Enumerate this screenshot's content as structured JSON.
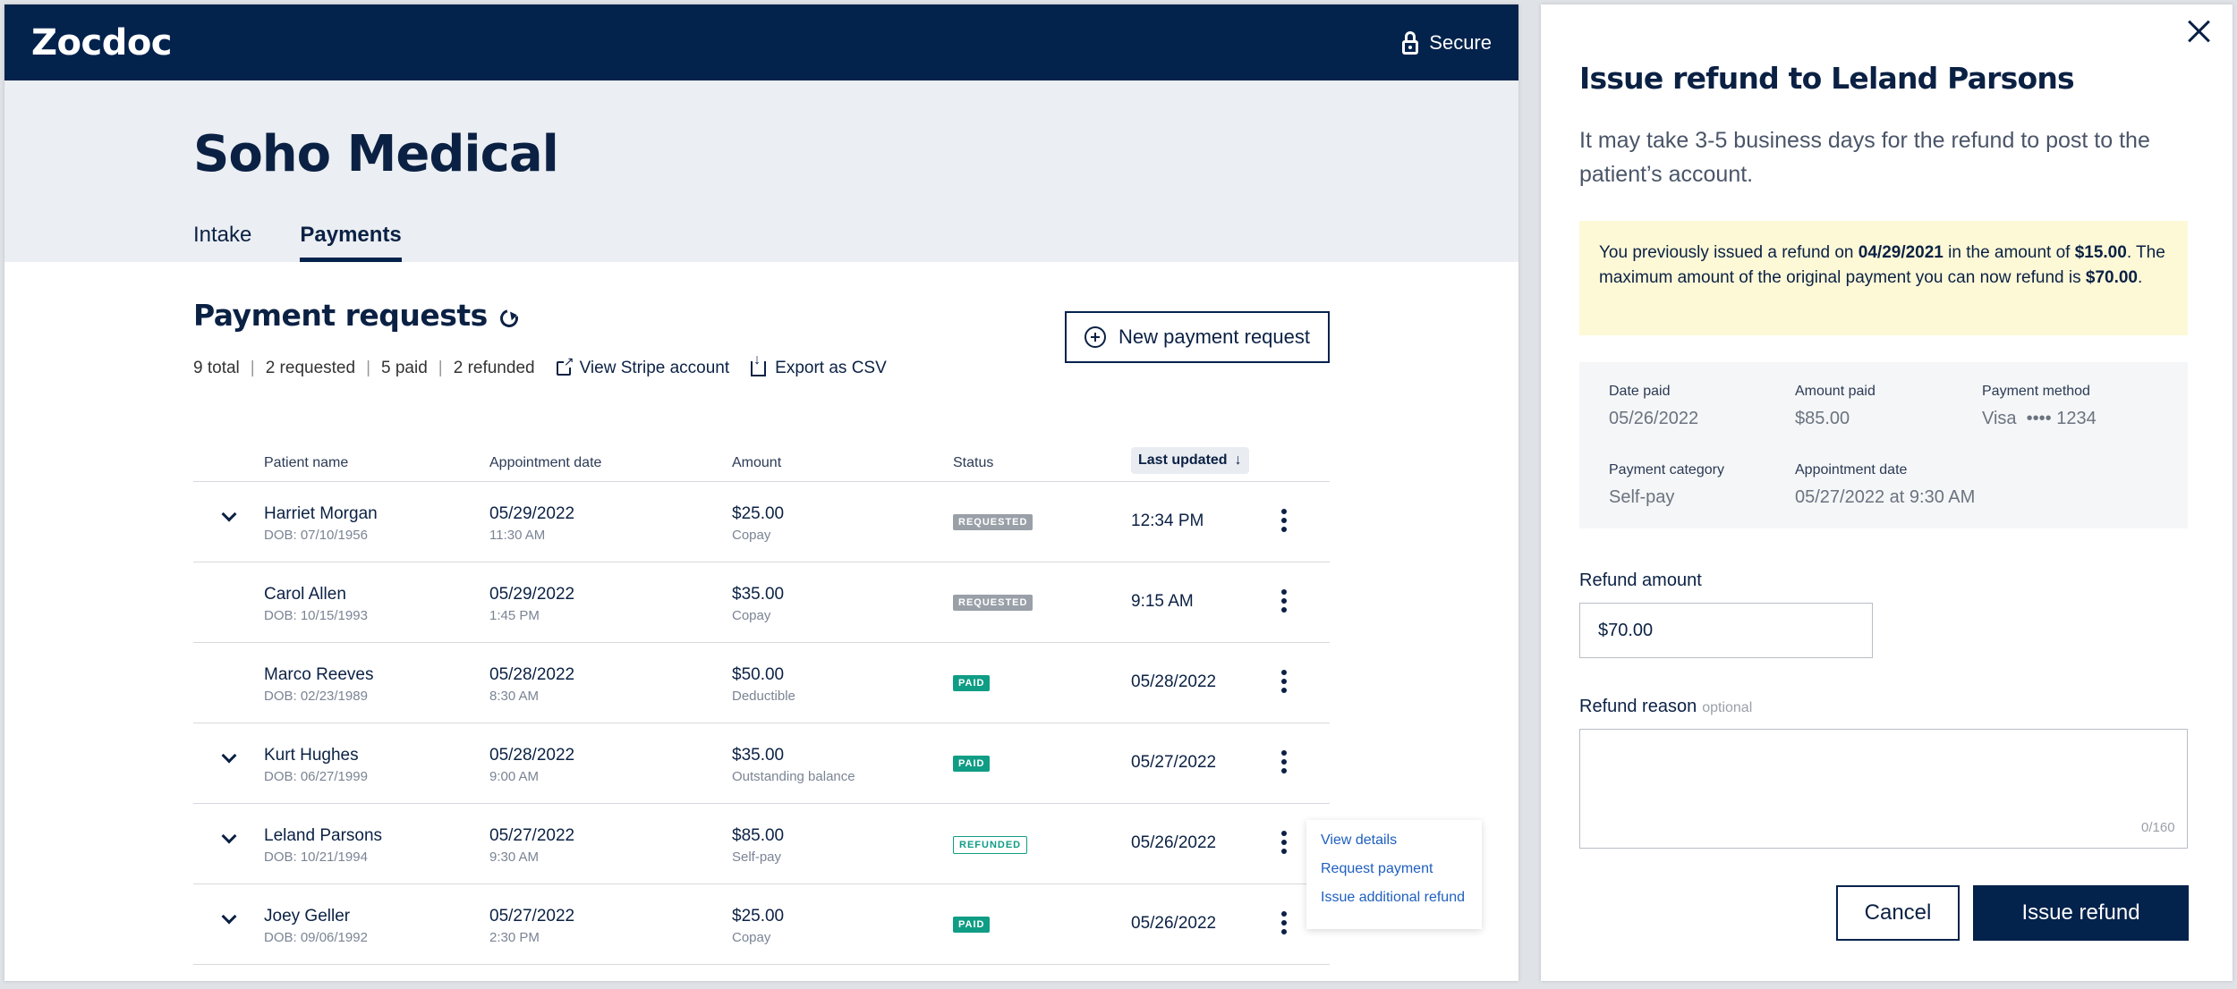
{
  "app": {
    "logo": "Zocdoc",
    "secure_label": "Secure",
    "org_title": "Soho Medical",
    "tabs": [
      {
        "label": "Intake"
      },
      {
        "label": "Payments"
      }
    ]
  },
  "payments": {
    "title": "Payment requests",
    "summary": {
      "total": "9 total",
      "requested": "2 requested",
      "paid": "5 paid",
      "refunded": "2 refunded",
      "view_stripe": "View Stripe account",
      "export_csv": "Export as CSV"
    },
    "new_request_label": "New payment request",
    "columns": {
      "patient": "Patient name",
      "appointment": "Appointment date",
      "amount": "Amount",
      "status": "Status",
      "updated": "Last updated"
    },
    "rows": [
      {
        "name": "Harriet Morgan",
        "dob": "DOB: 07/10/1956",
        "appt_date": "05/29/2022",
        "appt_time": "11:30 AM",
        "amount": "$25.00",
        "category": "Copay",
        "status": "REQUESTED",
        "updated": "12:34 PM"
      },
      {
        "name": "Carol Allen",
        "dob": "DOB: 10/15/1993",
        "appt_date": "05/29/2022",
        "appt_time": "1:45 PM",
        "amount": "$35.00",
        "category": "Copay",
        "status": "REQUESTED",
        "updated": "9:15 AM"
      },
      {
        "name": "Marco Reeves",
        "dob": "DOB: 02/23/1989",
        "appt_date": "05/28/2022",
        "appt_time": "8:30 AM",
        "amount": "$50.00",
        "category": "Deductible",
        "status": "PAID",
        "updated": "05/28/2022"
      },
      {
        "name": "Kurt Hughes",
        "dob": "DOB: 06/27/1999",
        "appt_date": "05/28/2022",
        "appt_time": "9:00 AM",
        "amount": "$35.00",
        "category": "Outstanding balance",
        "status": "PAID",
        "updated": "05/27/2022"
      },
      {
        "name": "Leland Parsons",
        "dob": "DOB: 10/21/1994",
        "appt_date": "05/27/2022",
        "appt_time": "9:30 AM",
        "amount": "$85.00",
        "category": "Self-pay",
        "status": "REFUNDED",
        "updated": "05/26/2022"
      },
      {
        "name": "Joey Geller",
        "dob": "DOB: 09/06/1992",
        "appt_date": "05/27/2022",
        "appt_time": "2:30 PM",
        "amount": "$25.00",
        "category": "Copay",
        "status": "PAID",
        "updated": "05/26/2022"
      }
    ],
    "row_menu": {
      "view_details": "View details",
      "request_payment": "Request payment",
      "issue_additional": "Issue additional refund"
    }
  },
  "refund_panel": {
    "title": "Issue refund to Leland Parsons",
    "description": "It may take 3-5 business days for the refund to post to the patient’s account.",
    "notice": {
      "pre": "You previously issued a refund on ",
      "date": "04/29/2021",
      "mid": " in the amount of ",
      "amount": "$15.00",
      "post": ". The maximum amount of the original payment you can now refund is ",
      "max": "$70.00",
      "end": "."
    },
    "details": {
      "date_paid_label": "Date paid",
      "date_paid": "05/26/2022",
      "amount_paid_label": "Amount paid",
      "amount_paid": "$85.00",
      "method_label": "Payment method",
      "method": "Visa  •••• 1234",
      "category_label": "Payment category",
      "category": "Self-pay",
      "appt_label": "Appointment date",
      "appt": "05/27/2022 at 9:30 AM"
    },
    "refund_amount_label": "Refund amount",
    "refund_amount_value": "$70.00",
    "refund_reason_label": "Refund reason",
    "refund_reason_optional": "optional",
    "reason_counter": "0/160",
    "cancel_label": "Cancel",
    "issue_label": "Issue refund"
  },
  "colors": {
    "navy": "#03224c",
    "paid": "#109d85",
    "requested": "#9aa0a8",
    "notice_bg": "#fdf9d7",
    "link": "#1e5fbf"
  }
}
